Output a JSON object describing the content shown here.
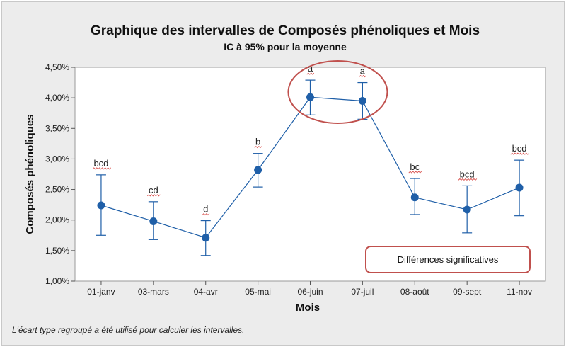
{
  "chart_data": {
    "type": "line",
    "title": "Graphique des intervalles de Composés phénoliques et Mois",
    "subtitle": "IC à 95% pour la moyenne",
    "xlabel": "Mois",
    "ylabel": "Composés phénoliques",
    "categories": [
      "01-janv",
      "03-mars",
      "04-avr",
      "05-mai",
      "06-juin",
      "07-juil",
      "08-août",
      "09-sept",
      "11-nov"
    ],
    "means": [
      2.24,
      1.98,
      1.71,
      2.82,
      4.01,
      3.95,
      2.37,
      2.17,
      2.53
    ],
    "ci_low": [
      1.75,
      1.68,
      1.42,
      2.54,
      3.72,
      3.65,
      2.09,
      1.79,
      2.07
    ],
    "ci_high": [
      2.74,
      2.3,
      1.99,
      3.09,
      4.29,
      4.25,
      2.68,
      2.56,
      2.98
    ],
    "group_letters": [
      "bcd",
      "cd",
      "d",
      "b",
      "a",
      "a",
      "bc",
      "bcd",
      "bcd"
    ],
    "ylim": [
      1.0,
      4.5
    ],
    "yticks": [
      "1,00%",
      "1,50%",
      "2,00%",
      "2,50%",
      "3,00%",
      "3,50%",
      "4,00%",
      "4,50%"
    ],
    "grid": false,
    "line_color": "#1f5fa8",
    "highlight_color": "#c0504d"
  },
  "annotation_box": "Différences significatives",
  "footnote": "L'écart type regroupé a été utilisé pour calculer les intervalles."
}
